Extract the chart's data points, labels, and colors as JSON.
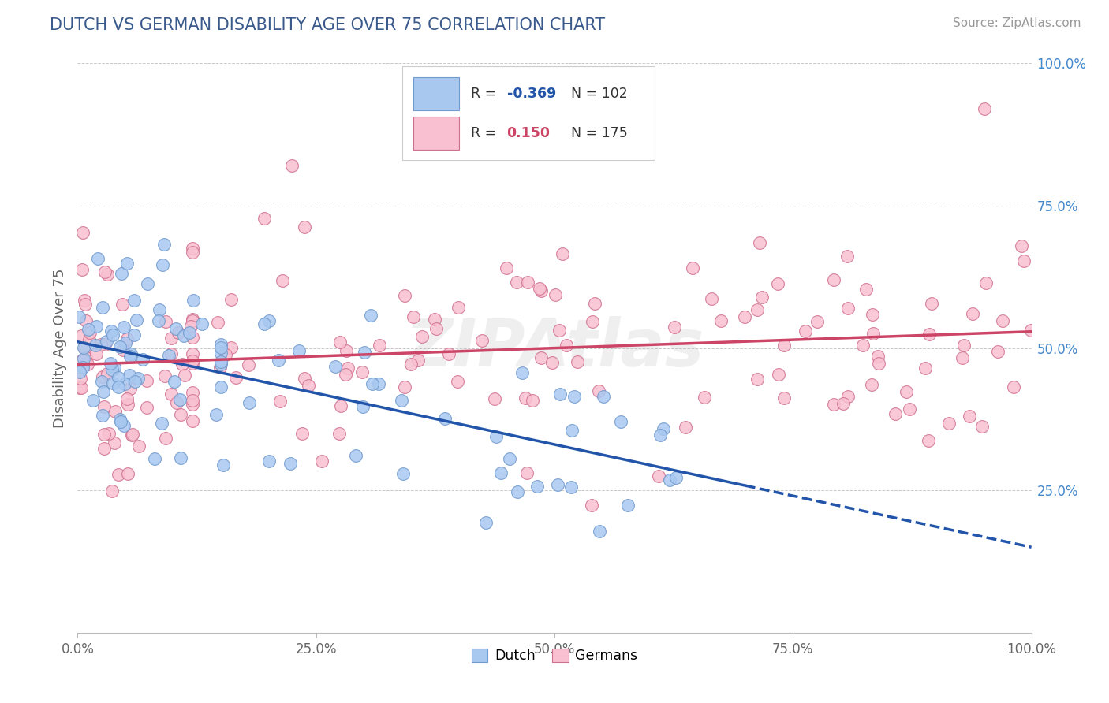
{
  "title": "DUTCH VS GERMAN DISABILITY AGE OVER 75 CORRELATION CHART",
  "source": "Source: ZipAtlas.com",
  "ylabel": "Disability Age Over 75",
  "xlim": [
    0.0,
    1.0
  ],
  "ylim": [
    0.0,
    1.0
  ],
  "xticks": [
    0.0,
    0.25,
    0.5,
    0.75,
    1.0
  ],
  "xticklabels": [
    "0.0%",
    "25.0%",
    "50.0%",
    "75.0%",
    "100.0%"
  ],
  "ytick_right_labels": [
    "25.0%",
    "50.0%",
    "75.0%",
    "100.0%"
  ],
  "ytick_right_values": [
    0.25,
    0.5,
    0.75,
    1.0
  ],
  "dutch_color": "#A8C8F0",
  "dutch_edge_color": "#7099CC",
  "german_color": "#F8C0D0",
  "german_edge_color": "#D07090",
  "dutch_R": -0.369,
  "dutch_N": 102,
  "german_R": 0.15,
  "german_N": 175,
  "dutch_line_color": "#2255AA",
  "german_line_color": "#CC4466",
  "watermark": "ZIPAtlas",
  "title_color": "#3A5A8C",
  "background_color": "#FFFFFF",
  "grid_color": "#BBBBBB",
  "legend_dutch_color": "#A8C8F0",
  "legend_german_color": "#F8C0D0",
  "legend_dutch_edge": "#7099CC",
  "legend_german_edge": "#D07090"
}
